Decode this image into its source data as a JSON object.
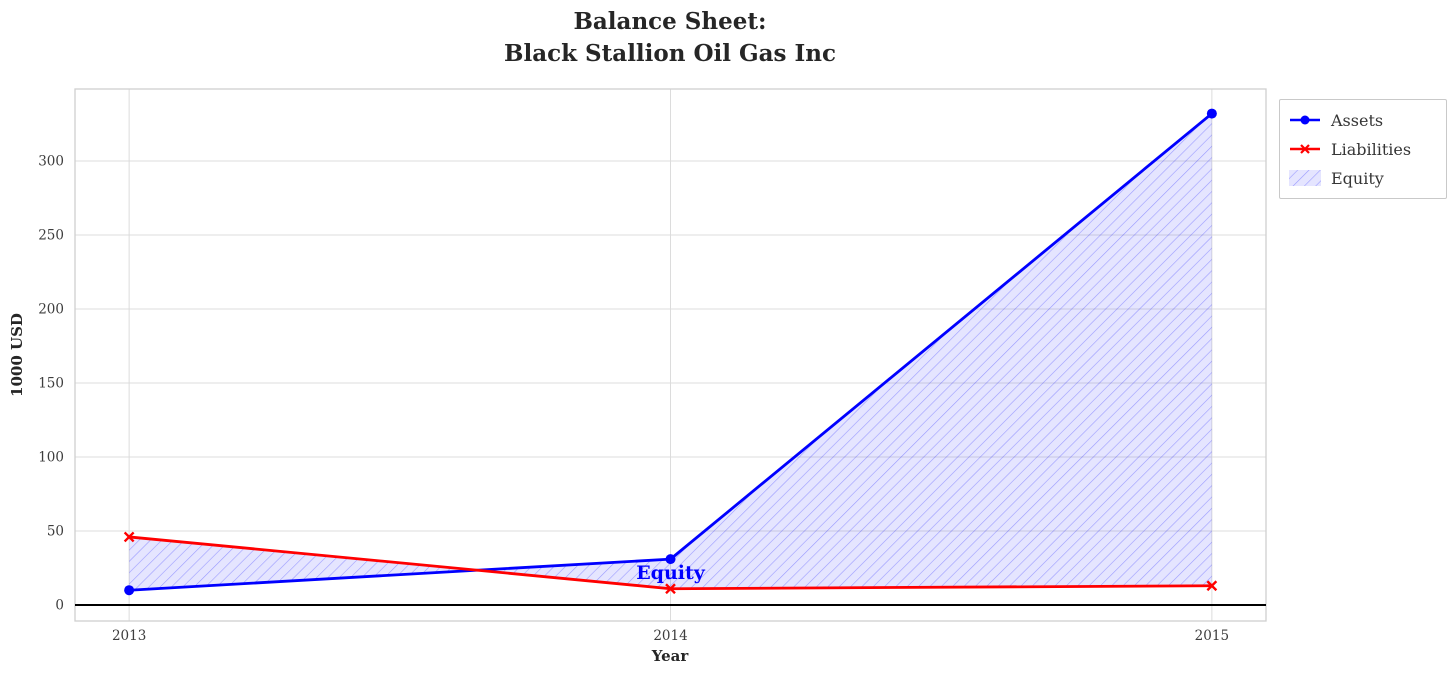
{
  "title": "Balance Sheet: Black Stallion Oil Gas Inc",
  "chart_data": {
    "type": "line",
    "title": "Balance Sheet:\nBlack Stallion Oil Gas Inc",
    "title_lines": [
      "Balance Sheet:",
      "Black Stallion Oil Gas Inc"
    ],
    "xlabel": "Year",
    "ylabel": "1000 USD",
    "x": [
      2013,
      2014,
      2015
    ],
    "xticks": [
      2013,
      2014,
      2015
    ],
    "yticks": [
      0,
      50,
      100,
      150,
      200,
      250,
      300
    ],
    "xlim": [
      2012.9,
      2015.1
    ],
    "ylim": [
      -10.8,
      348.6
    ],
    "grid": true,
    "series": [
      {
        "name": "Assets",
        "values": [
          10,
          31,
          332
        ],
        "color": "#0000ff",
        "marker": "circle"
      },
      {
        "name": "Liabilities",
        "values": [
          46,
          11,
          13
        ],
        "color": "#ff0000",
        "marker": "x"
      }
    ],
    "fill_between": {
      "name": "Equity",
      "upper": "Assets",
      "lower": "Liabilities",
      "implied_values": [
        -36,
        20,
        319
      ],
      "fill_color": "#0000ff",
      "fill_opacity": 0.1,
      "hatch": "//"
    },
    "annotation": {
      "text": "Equity",
      "x": 2014,
      "y": 21,
      "color": "#0000ff"
    },
    "legend_position": "outside-top-right",
    "legend": [
      {
        "label": "Assets",
        "type": "line-circle",
        "color": "#0000ff"
      },
      {
        "label": "Liabilities",
        "type": "line-x",
        "color": "#ff0000"
      },
      {
        "label": "Equity",
        "type": "hatched-patch",
        "color": "#0000ff"
      }
    ],
    "colors": {
      "assets": "#0000ff",
      "liabilities": "#ff0000",
      "grid": "#dcdcdc",
      "border": "#cfcfcf",
      "zero_line": "#000000",
      "text": "#3d3d3d"
    }
  }
}
